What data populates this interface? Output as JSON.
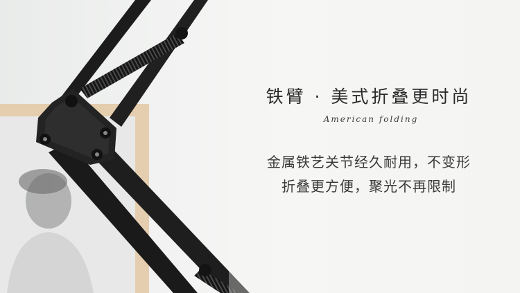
{
  "headline": "铁臂 · 美式折叠更时尚",
  "script_text": "American folding",
  "description": [
    "金属铁艺关节经久耐用，不变形",
    "折叠更方便，聚光不再限制"
  ],
  "colors": {
    "background": "#f2f2f1",
    "text": "#2b2b2b",
    "arm": "#1c1c1c",
    "frame_wood": "#e2c8a4"
  }
}
